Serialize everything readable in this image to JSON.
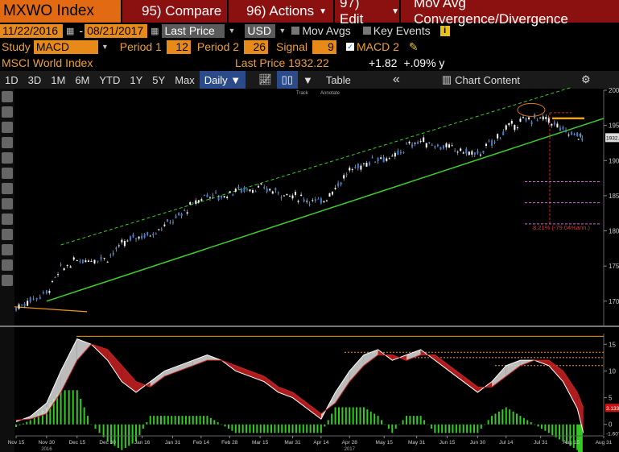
{
  "header": {
    "ticker": "MXWO Index",
    "cmd_compare": "95) Compare",
    "cmd_actions": "96) Actions",
    "cmd_edit": "97) Edit",
    "study_name": "Mov Avg Convergence/Divergence"
  },
  "settings": {
    "start_date": "11/22/2016",
    "end_date": "08/21/2017",
    "price_type": "Last Price",
    "currency": "USD",
    "mov_avgs": "Mov Avgs",
    "key_events": "Key Events",
    "study_label": "Study",
    "study_value": "MACD",
    "period1_label": "Period 1",
    "period1_value": "12",
    "period2_label": "Period 2",
    "period2_value": "26",
    "signal_label": "Signal",
    "signal_value": "9",
    "macd2": "MACD 2"
  },
  "quote": {
    "name": "MSCI World Index",
    "last_price_label": "Last Price 1932.22",
    "change": "+1.82",
    "change_pct": "+.09% y"
  },
  "toolbar": {
    "ranges": [
      "1D",
      "3D",
      "1M",
      "6M",
      "YTD",
      "1Y",
      "5Y",
      "Max"
    ],
    "frequency": "Daily ▼",
    "table": "Table",
    "chart_content": "Chart Content"
  },
  "chart_data": [
    {
      "type": "line",
      "title": "",
      "ylim": [
        1670,
        2000
      ],
      "yticks": [
        1700,
        1750,
        1800,
        1850,
        1900,
        1950,
        2000
      ],
      "last_value_label": "1932.22",
      "annotation": "8.21% (-79.04%ann.)",
      "top_buttons": [
        "Track",
        "Annotate"
      ],
      "series": [
        {
          "x": [
            "2016-11-15",
            "2016-11-22",
            "2016-11-30",
            "2016-12-07",
            "2016-12-15",
            "2016-12-22",
            "2016-12-30",
            "2017-01-06",
            "2017-01-13",
            "2017-01-20",
            "2017-01-27",
            "2017-02-03",
            "2017-02-10",
            "2017-02-17",
            "2017-02-24",
            "2017-03-03",
            "2017-03-10",
            "2017-03-17",
            "2017-03-24",
            "2017-03-31",
            "2017-04-07",
            "2017-04-14",
            "2017-04-21",
            "2017-04-28",
            "2017-05-05",
            "2017-05-12",
            "2017-05-19",
            "2017-05-26",
            "2017-06-02",
            "2017-06-09",
            "2017-06-16",
            "2017-06-23",
            "2017-06-30",
            "2017-07-07",
            "2017-07-14",
            "2017-07-21",
            "2017-07-28",
            "2017-08-04",
            "2017-08-11",
            "2017-08-18",
            "2017-08-21"
          ],
          "values": [
            1690,
            1702,
            1712,
            1745,
            1758,
            1760,
            1762,
            1780,
            1792,
            1795,
            1808,
            1820,
            1838,
            1852,
            1848,
            1858,
            1860,
            1860,
            1855,
            1850,
            1845,
            1840,
            1862,
            1885,
            1895,
            1905,
            1902,
            1920,
            1928,
            1922,
            1918,
            1913,
            1908,
            1925,
            1945,
            1955,
            1960,
            1958,
            1942,
            1936,
            1932
          ]
        }
      ],
      "trendlines": {
        "lower": [
          [
            "2016-11-30",
            1700
          ],
          [
            "2017-08-31",
            1960
          ]
        ],
        "upper": [
          [
            "2016-12-07",
            1780
          ],
          [
            "2017-08-15",
            2004
          ]
        ]
      }
    },
    {
      "type": "line",
      "title": "",
      "ylim": [
        -2,
        17
      ],
      "yticks": [
        0,
        5,
        10,
        15
      ],
      "value_labels": [
        "3.1336",
        "-1.6076"
      ],
      "xticks": [
        "Nov 15",
        "Nov 30",
        "Dec 15",
        "Dec 30",
        "Jan 16",
        "Jan 31",
        "Feb 14",
        "Feb 28",
        "Mar 15",
        "Mar 31",
        "Apr 14",
        "Apr 28",
        "May 15",
        "May 31",
        "Jun 15",
        "Jun 30",
        "Jul 14",
        "Jul 31",
        "Aug 15",
        "Aug 31"
      ],
      "year_labels": [
        "2016",
        "2017"
      ],
      "series": [
        {
          "x": [
            "2016-11-15",
            "2016-11-22",
            "2016-11-30",
            "2016-12-07",
            "2016-12-15",
            "2016-12-22",
            "2016-12-30",
            "2017-01-06",
            "2017-01-13",
            "2017-01-20",
            "2017-01-27",
            "2017-02-03",
            "2017-02-10",
            "2017-02-17",
            "2017-02-24",
            "2017-03-03",
            "2017-03-10",
            "2017-03-17",
            "2017-03-24",
            "2017-03-31",
            "2017-04-07",
            "2017-04-14",
            "2017-04-21",
            "2017-04-28",
            "2017-05-05",
            "2017-05-12",
            "2017-05-19",
            "2017-05-26",
            "2017-06-02",
            "2017-06-09",
            "2017-06-16",
            "2017-06-23",
            "2017-06-30",
            "2017-07-07",
            "2017-07-14",
            "2017-07-21",
            "2017-07-28",
            "2017-08-04",
            "2017-08-11",
            "2017-08-18",
            "2017-08-21"
          ],
          "values": [
            0.5,
            1.5,
            4,
            10,
            16,
            15,
            12,
            8,
            6,
            8,
            10,
            11,
            12,
            13,
            12,
            10,
            9,
            8,
            6,
            5,
            3,
            1,
            6,
            10,
            13,
            14,
            12,
            13,
            14,
            12,
            10,
            8,
            6,
            8,
            11,
            12,
            12,
            11,
            8,
            3,
            -1.6
          ]
        },
        {
          "x": [
            "2016-11-15",
            "2016-11-22",
            "2016-11-30",
            "2016-12-07",
            "2016-12-15",
            "2016-12-22",
            "2016-12-30",
            "2017-01-06",
            "2017-01-13",
            "2017-01-20",
            "2017-01-27",
            "2017-02-03",
            "2017-02-10",
            "2017-02-17",
            "2017-02-24",
            "2017-03-03",
            "2017-03-10",
            "2017-03-17",
            "2017-03-24",
            "2017-03-31",
            "2017-04-07",
            "2017-04-14",
            "2017-04-21",
            "2017-04-28",
            "2017-05-05",
            "2017-05-12",
            "2017-05-19",
            "2017-05-26",
            "2017-06-02",
            "2017-06-09",
            "2017-06-16",
            "2017-06-23",
            "2017-06-30",
            "2017-07-07",
            "2017-07-14",
            "2017-07-21",
            "2017-07-28",
            "2017-08-04",
            "2017-08-11",
            "2017-08-18",
            "2017-08-21"
          ],
          "values": [
            0.8,
            1,
            2,
            6,
            12,
            15,
            14,
            11,
            8,
            7,
            9,
            10,
            11,
            12,
            12,
            11,
            10,
            9,
            7,
            6,
            4,
            2,
            4,
            8,
            11,
            13,
            13,
            12,
            13,
            13,
            11,
            9,
            7,
            7,
            9,
            11,
            12,
            12,
            10,
            6,
            3.1
          ]
        }
      ],
      "hlines": [
        16.5,
        13.5,
        12.5,
        11
      ]
    }
  ],
  "colors": {
    "candle_up": "#3a7fd8",
    "trend": "#3ed02a",
    "bg": "#000000",
    "orange": "#f39a1a",
    "histogram": "#33cc22",
    "fill_up": "#cc2222",
    "fill_down": "#dddddd"
  }
}
